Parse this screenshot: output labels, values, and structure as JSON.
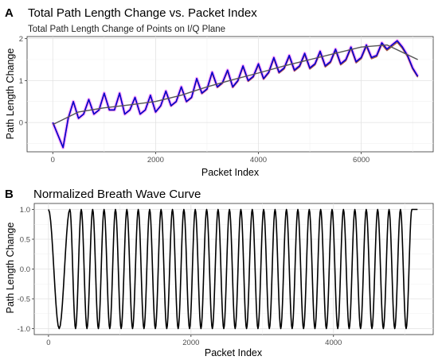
{
  "chart_data": [
    {
      "panel_label": "A",
      "type": "line",
      "title": "Total Path Length Change vs. Packet Index",
      "subtitle": "Total Path Length Change of Points on I/Q Plane",
      "xlabel": "Packet Index",
      "ylabel": "Path Length Change",
      "xlim": [
        -500,
        7400
      ],
      "ylim": [
        -0.7,
        2.05
      ],
      "xticks": [
        0,
        2000,
        4000,
        6000
      ],
      "xtick_labels": [
        "0",
        "2000",
        "4000",
        "6000"
      ],
      "yticks": [
        0,
        1,
        2
      ],
      "ytick_labels": [
        "0",
        "1",
        "2"
      ],
      "grid": true,
      "legend": "none",
      "colors": {
        "raw": "#0000cc",
        "bands": "#ff00ff",
        "trend": "#8b4513",
        "trend_line": "#555555"
      },
      "raw_series": {
        "x": [
          0,
          100,
          200,
          300,
          400,
          500,
          600,
          700,
          800,
          900,
          1000,
          1100,
          1200,
          1300,
          1400,
          1500,
          1600,
          1700,
          1800,
          1900,
          2000,
          2100,
          2200,
          2300,
          2400,
          2500,
          2600,
          2700,
          2800,
          2900,
          3000,
          3100,
          3200,
          3300,
          3400,
          3500,
          3600,
          3700,
          3800,
          3900,
          4000,
          4100,
          4200,
          4300,
          4400,
          4500,
          4600,
          4700,
          4800,
          4900,
          5000,
          5100,
          5200,
          5300,
          5400,
          5500,
          5600,
          5700,
          5800,
          5900,
          6000,
          6100,
          6200,
          6300,
          6400,
          6500,
          6600,
          6700,
          6800,
          6900,
          7000,
          7100
        ],
        "y": [
          0.0,
          -0.3,
          -0.6,
          0.1,
          0.5,
          0.1,
          0.2,
          0.55,
          0.2,
          0.3,
          0.7,
          0.3,
          0.3,
          0.7,
          0.2,
          0.3,
          0.6,
          0.2,
          0.3,
          0.65,
          0.25,
          0.4,
          0.75,
          0.4,
          0.5,
          0.85,
          0.5,
          0.6,
          1.05,
          0.7,
          0.8,
          1.2,
          0.85,
          0.95,
          1.25,
          0.85,
          1.0,
          1.35,
          1.0,
          1.1,
          1.4,
          1.05,
          1.2,
          1.55,
          1.2,
          1.3,
          1.6,
          1.25,
          1.35,
          1.65,
          1.3,
          1.4,
          1.7,
          1.35,
          1.45,
          1.75,
          1.4,
          1.5,
          1.8,
          1.45,
          1.55,
          1.85,
          1.55,
          1.6,
          1.9,
          1.75,
          1.85,
          1.95,
          1.8,
          1.6,
          1.3,
          1.1
        ]
      },
      "trend_series": {
        "x": [
          0,
          500,
          1000,
          1500,
          2000,
          2500,
          3000,
          3500,
          4000,
          4500,
          5000,
          5500,
          6000,
          6500,
          7100
        ],
        "y": [
          -0.05,
          0.25,
          0.35,
          0.42,
          0.5,
          0.65,
          0.85,
          1.02,
          1.18,
          1.35,
          1.5,
          1.65,
          1.8,
          1.85,
          1.5
        ]
      }
    },
    {
      "panel_label": "B",
      "type": "line",
      "title": "Normalized Breath Wave Curve",
      "xlabel": "Packet Index",
      "ylabel": "Path Length Change",
      "xlim": [
        -200,
        5400
      ],
      "ylim": [
        -1.1,
        1.1
      ],
      "xticks": [
        0,
        2000,
        4000
      ],
      "xtick_labels": [
        "0",
        "2000",
        "4000"
      ],
      "yticks": [
        -1.0,
        -0.5,
        0.0,
        0.5,
        1.0
      ],
      "ytick_labels": [
        "-1.0",
        "-0.5",
        "0.0",
        "0.5",
        "1.0"
      ],
      "grid": true,
      "legend": "none",
      "colors": {
        "line": "#000000"
      },
      "series": {
        "x": [
          0,
          150,
          300,
          380,
          460,
          540,
          620,
          700,
          780,
          860,
          940,
          1020,
          1100,
          1180,
          1260,
          1340,
          1420,
          1500,
          1580,
          1660,
          1740,
          1820,
          1900,
          1980,
          2060,
          2140,
          2220,
          2300,
          2380,
          2460,
          2540,
          2620,
          2700,
          2780,
          2860,
          2940,
          3020,
          3100,
          3180,
          3260,
          3340,
          3420,
          3500,
          3580,
          3660,
          3740,
          3820,
          3900,
          3980,
          4060,
          4140,
          4220,
          4300,
          4380,
          4460,
          4540,
          4620,
          4700,
          4780,
          4860,
          4940,
          5020,
          5100,
          5180
        ],
        "y": [
          1.0,
          -1.0,
          1.0,
          -1.0,
          1.0,
          -1.0,
          1.0,
          -1.0,
          1.0,
          -1.0,
          1.0,
          -1.0,
          1.0,
          -1.0,
          1.0,
          -1.0,
          1.0,
          -1.0,
          1.0,
          -1.0,
          1.0,
          -1.0,
          1.0,
          -1.0,
          1.0,
          -1.0,
          1.0,
          -1.0,
          1.0,
          -1.0,
          1.0,
          -1.0,
          1.0,
          -1.0,
          1.0,
          -1.0,
          1.0,
          -1.0,
          1.0,
          -1.0,
          1.0,
          -1.0,
          1.0,
          -1.0,
          1.0,
          -1.0,
          1.0,
          -1.0,
          1.0,
          -1.0,
          1.0,
          -1.0,
          1.0,
          -1.0,
          1.0,
          -1.0,
          1.0,
          -1.0,
          1.0,
          -1.0,
          1.0,
          -1.0,
          1.0,
          1.0
        ]
      }
    }
  ]
}
